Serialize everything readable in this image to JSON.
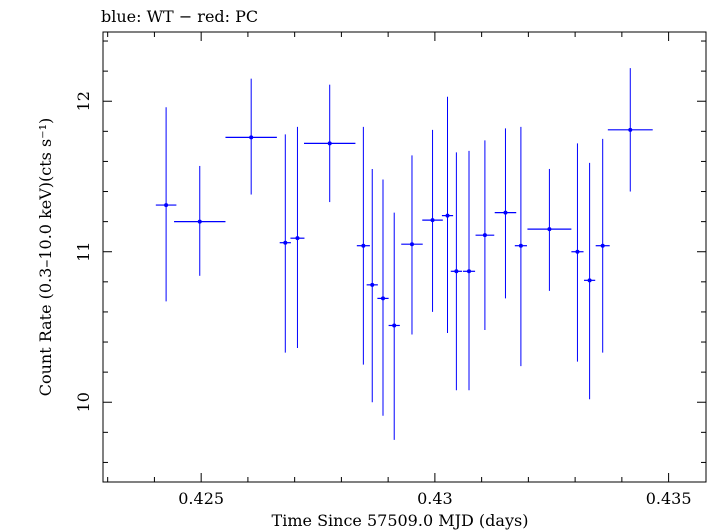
{
  "chart_data": {
    "type": "scatter",
    "title": "blue: WT − red: PC",
    "xlabel": "Time Since 57509.0 MJD (days)",
    "ylabel": "Count Rate (0.3–10.0 keV)(cts s⁻¹)",
    "xlim": [
      0.4229,
      0.4358
    ],
    "ylim": [
      9.47,
      12.46
    ],
    "x_ticks": [
      {
        "value": 0.425,
        "label": "0.425"
      },
      {
        "value": 0.43,
        "label": "0.43"
      },
      {
        "value": 0.435,
        "label": "0.435"
      }
    ],
    "y_ticks": [
      {
        "value": 10,
        "label": "10"
      },
      {
        "value": 11,
        "label": "11"
      },
      {
        "value": 12,
        "label": "12"
      }
    ],
    "grid": false,
    "series": [
      {
        "color": "#0000ff",
        "points": [
          {
            "x": 0.42425,
            "xerr": 0.00022,
            "y": 11.31,
            "ylo": 10.67,
            "yhi": 11.96
          },
          {
            "x": 0.42497,
            "xerr": 0.00055,
            "y": 11.2,
            "ylo": 10.84,
            "yhi": 11.57
          },
          {
            "x": 0.42607,
            "xerr": 0.00055,
            "y": 11.76,
            "ylo": 11.38,
            "yhi": 12.15
          },
          {
            "x": 0.4268,
            "xerr": 0.00012,
            "y": 11.06,
            "ylo": 10.33,
            "yhi": 11.78
          },
          {
            "x": 0.42706,
            "xerr": 0.00015,
            "y": 11.09,
            "ylo": 10.36,
            "yhi": 11.83
          },
          {
            "x": 0.42775,
            "xerr": 0.00055,
            "y": 11.72,
            "ylo": 11.33,
            "yhi": 12.11
          },
          {
            "x": 0.42847,
            "xerr": 0.00014,
            "y": 11.04,
            "ylo": 10.25,
            "yhi": 11.83
          },
          {
            "x": 0.42866,
            "xerr": 0.00012,
            "y": 10.78,
            "ylo": 10.0,
            "yhi": 11.55
          },
          {
            "x": 0.42889,
            "xerr": 0.00012,
            "y": 10.69,
            "ylo": 9.91,
            "yhi": 11.48
          },
          {
            "x": 0.42913,
            "xerr": 0.00012,
            "y": 10.51,
            "ylo": 9.75,
            "yhi": 11.26
          },
          {
            "x": 0.42951,
            "xerr": 0.00023,
            "y": 11.05,
            "ylo": 10.45,
            "yhi": 11.64
          },
          {
            "x": 0.42995,
            "xerr": 0.00022,
            "y": 11.21,
            "ylo": 10.6,
            "yhi": 11.81
          },
          {
            "x": 0.43027,
            "xerr": 0.00012,
            "y": 11.24,
            "ylo": 10.46,
            "yhi": 12.03
          },
          {
            "x": 0.43046,
            "xerr": 0.00012,
            "y": 10.87,
            "ylo": 10.08,
            "yhi": 11.66
          },
          {
            "x": 0.43073,
            "xerr": 0.00013,
            "y": 10.87,
            "ylo": 10.08,
            "yhi": 11.67
          },
          {
            "x": 0.43107,
            "xerr": 0.0002,
            "y": 11.11,
            "ylo": 10.48,
            "yhi": 11.74
          },
          {
            "x": 0.43151,
            "xerr": 0.00023,
            "y": 11.26,
            "ylo": 10.69,
            "yhi": 11.82
          },
          {
            "x": 0.43184,
            "xerr": 0.00013,
            "y": 11.04,
            "ylo": 10.24,
            "yhi": 11.83
          },
          {
            "x": 0.43245,
            "xerr": 0.00047,
            "y": 11.15,
            "ylo": 10.74,
            "yhi": 11.55
          },
          {
            "x": 0.43305,
            "xerr": 0.00013,
            "y": 11.0,
            "ylo": 10.27,
            "yhi": 11.72
          },
          {
            "x": 0.43331,
            "xerr": 0.00012,
            "y": 10.81,
            "ylo": 10.02,
            "yhi": 11.59
          },
          {
            "x": 0.43359,
            "xerr": 0.00015,
            "y": 11.04,
            "ylo": 10.33,
            "yhi": 11.75
          },
          {
            "x": 0.43418,
            "xerr": 0.00048,
            "y": 11.81,
            "ylo": 11.4,
            "yhi": 12.22
          }
        ]
      }
    ]
  }
}
